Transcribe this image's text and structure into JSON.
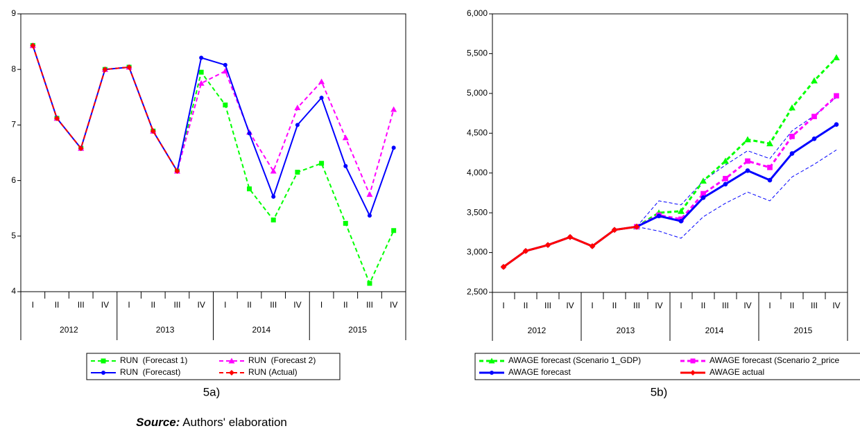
{
  "chart_data": [
    {
      "type": "line",
      "categories": [
        "I",
        "II",
        "III",
        "IV",
        "I",
        "II",
        "III",
        "IV",
        "I",
        "II",
        "III",
        "IV",
        "I",
        "II",
        "III",
        "IV"
      ],
      "category_groups": [
        "2012",
        "2013",
        "2014",
        "2015"
      ],
      "ylim": [
        4,
        9
      ],
      "yticks": [
        4,
        5,
        6,
        7,
        8,
        9
      ],
      "series": [
        {
          "name": "RUN  (Forecast 1)",
          "color": "#00ff00",
          "dash": true,
          "marker": "square",
          "values": [
            8.43,
            7.12,
            6.58,
            8.0,
            8.04,
            6.89,
            6.17,
            7.95,
            7.36,
            5.85,
            5.29,
            6.15,
            6.31,
            5.23,
            4.15,
            5.1
          ]
        },
        {
          "name": "RUN  (Forecast 2)",
          "color": "#ff00ff",
          "dash": true,
          "marker": "triangle",
          "values": [
            8.43,
            7.12,
            6.58,
            8.0,
            8.04,
            6.89,
            6.17,
            7.75,
            7.97,
            6.87,
            6.17,
            7.31,
            7.78,
            6.77,
            5.75,
            7.28
          ]
        },
        {
          "name": "RUN  (Forecast)",
          "color": "#0000ff",
          "dash": false,
          "marker": "circle",
          "values": [
            8.43,
            7.12,
            6.58,
            8.0,
            8.04,
            6.89,
            6.17,
            8.21,
            8.08,
            6.85,
            5.71,
            7.0,
            7.49,
            6.26,
            5.37,
            6.59
          ]
        },
        {
          "name": "RUN (Actual)",
          "color": "#ff0000",
          "dash": true,
          "marker": "diamond",
          "values": [
            8.43,
            7.12,
            6.58,
            8.0,
            8.04,
            6.89,
            6.17,
            null,
            null,
            null,
            null,
            null,
            null,
            null,
            null,
            null
          ]
        }
      ],
      "caption": "5a)"
    },
    {
      "type": "line",
      "categories": [
        "I",
        "II",
        "III",
        "IV",
        "I",
        "II",
        "III",
        "IV",
        "I",
        "II",
        "III",
        "IV",
        "I",
        "II",
        "III",
        "IV"
      ],
      "category_groups": [
        "2012",
        "2013",
        "2014",
        "2015"
      ],
      "ylim": [
        2500,
        6000
      ],
      "yticks": [
        {
          "value": 2500,
          "label": "2,500"
        },
        {
          "value": 3000,
          "label": "3,000"
        },
        {
          "value": 3500,
          "label": "3,500"
        },
        {
          "value": 4000,
          "label": "4,000"
        },
        {
          "value": 4500,
          "label": "4,500"
        },
        {
          "value": 5000,
          "label": "5,000"
        },
        {
          "value": 5500,
          "label": "5,500"
        },
        {
          "value": 6000,
          "label": "6,000"
        }
      ],
      "series": [
        {
          "color": "#0000ff",
          "dash": true,
          "marker": "none",
          "values": [
            null,
            null,
            null,
            null,
            null,
            null,
            3325,
            3650,
            3600,
            3900,
            4100,
            4280,
            4180,
            4530,
            4720,
            4950
          ]
        },
        {
          "color": "#0000ff",
          "dash": true,
          "marker": "none",
          "values": [
            null,
            null,
            null,
            null,
            null,
            null,
            3325,
            3270,
            3180,
            3450,
            3620,
            3760,
            3650,
            3950,
            4110,
            4290
          ]
        },
        {
          "name": "AWAGE forecast (Scenario 1_GDP)",
          "color": "#00ff00",
          "dash": true,
          "marker": "triangle",
          "values": [
            null,
            null,
            null,
            null,
            null,
            null,
            3325,
            3500,
            3520,
            3900,
            4150,
            4420,
            4370,
            4820,
            5160,
            5450
          ]
        },
        {
          "name": "AWAGE forecast (Scenario 2_price",
          "color": "#ff00ff",
          "dash": true,
          "marker": "square",
          "values": [
            null,
            null,
            null,
            null,
            null,
            null,
            3325,
            3470,
            3420,
            3740,
            3930,
            4150,
            4070,
            4460,
            4710,
            4970
          ]
        },
        {
          "name": "AWAGE forecast",
          "color": "#0000ff",
          "dash": false,
          "marker": "circle",
          "values": [
            2820,
            3020,
            3095,
            3195,
            3080,
            3285,
            3325,
            3460,
            3395,
            3690,
            3860,
            4030,
            3910,
            4245,
            4430,
            4610
          ]
        },
        {
          "name": "AWAGE actual",
          "color": "#ff0000",
          "dash": false,
          "marker": "diamond",
          "values": [
            2820,
            3020,
            3095,
            3195,
            3080,
            3285,
            3325,
            null,
            null,
            null,
            null,
            null,
            null,
            null,
            null,
            null
          ]
        }
      ],
      "caption": "5b)"
    }
  ],
  "source": {
    "label": "Source:",
    "text": "Authors' elaboration"
  }
}
